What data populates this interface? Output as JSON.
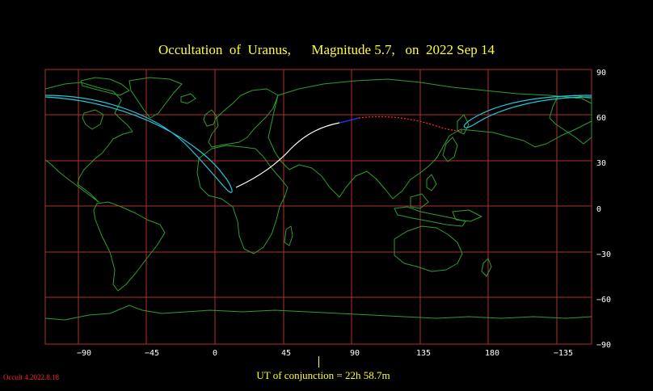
{
  "title": "Occultation  of  Uranus,      Magnitude 5.7,   on  2022 Sep 14",
  "conjunction_label": "UT of conjunction = 22h 58.7m",
  "version_label": "Occult 4.2022.8.18",
  "colors": {
    "grid": "#b03030",
    "coast": "#2e9e2e",
    "limit_line": "#22c8dc",
    "day_track": "#ffffff",
    "twilight_track": "#3333ff",
    "night_track": "#ff3030",
    "title": "#ffff33"
  },
  "axes": {
    "lon_ticks": [
      "−90",
      "−45",
      "0",
      "45",
      "90",
      "135",
      "180",
      "−135"
    ],
    "lat_ticks": [
      "90",
      "60",
      "30",
      "0",
      "−30",
      "−60",
      "−90"
    ]
  }
}
